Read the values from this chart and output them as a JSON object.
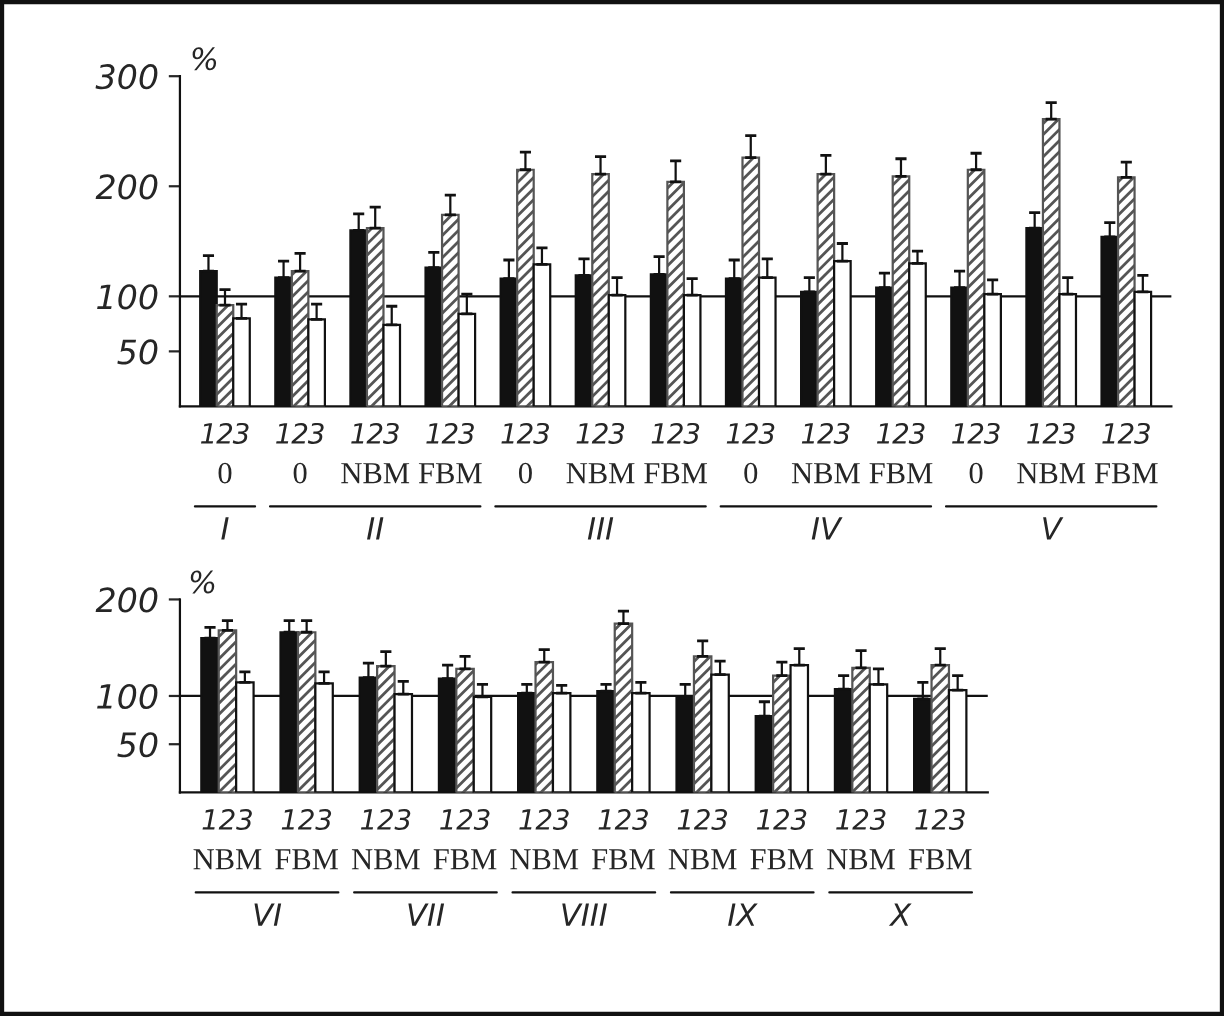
{
  "chart_data": [
    {
      "type": "bar",
      "ylabel": "%",
      "categories": [
        "0",
        "0",
        "NBM",
        "FBM",
        "0",
        "NBM",
        "FBM",
        "0",
        "NBM",
        "FBM",
        "0",
        "NBM",
        "FBM"
      ],
      "series": [
        {
          "name": "1",
          "color": "#111111",
          "values": [
            123,
            117,
            160,
            126,
            116,
            119,
            120,
            116,
            104,
            108,
            108,
            162,
            154
          ],
          "errors": [
            [
              123,
              137
            ],
            [
              117,
              132
            ],
            [
              160,
              175
            ],
            [
              126,
              140
            ],
            [
              116,
              133
            ],
            [
              119,
              134
            ],
            [
              120,
              136
            ],
            [
              116,
              133
            ],
            [
              104,
              117
            ],
            [
              108,
              121
            ],
            [
              108,
              123
            ],
            [
              162,
              176
            ],
            [
              154,
              167
            ]
          ]
        },
        {
          "name": "2",
          "color": "#555555",
          "values": [
            92,
            123,
            162,
            174,
            215,
            211,
            204,
            226,
            211,
            209,
            215,
            261,
            208
          ],
          "errors": [
            [
              92,
              106
            ],
            [
              123,
              139
            ],
            [
              162,
              181
            ],
            [
              174,
              192
            ],
            [
              215,
              231
            ],
            [
              211,
              227
            ],
            [
              204,
              223
            ],
            [
              226,
              246
            ],
            [
              211,
              228
            ],
            [
              209,
              225
            ],
            [
              215,
              230
            ],
            [
              261,
              276
            ],
            [
              208,
              222
            ]
          ]
        },
        {
          "name": "3",
          "color": "#ffffff",
          "values": [
            80,
            79,
            74,
            84,
            129,
            101,
            101,
            117,
            132,
            130,
            102,
            102,
            104
          ],
          "errors": [
            [
              80,
              93
            ],
            [
              79,
              93
            ],
            [
              74,
              91
            ],
            [
              84,
              102
            ],
            [
              129,
              144
            ],
            [
              101,
              117
            ],
            [
              101,
              116
            ],
            [
              117,
              134
            ],
            [
              132,
              148
            ],
            [
              130,
              141
            ],
            [
              102,
              115
            ],
            [
              102,
              117
            ],
            [
              104,
              119
            ]
          ]
        }
      ],
      "ylim": [
        0,
        300
      ],
      "yticks": [
        50,
        100,
        200,
        300
      ],
      "ref_lines": [
        {
          "axis": "y",
          "value": 100,
          "color": "#111111"
        }
      ],
      "annotations": [
        "I",
        "II",
        "III",
        "IV",
        "V"
      ]
    },
    {
      "type": "bar",
      "ylabel": "%",
      "categories": [
        "NBM",
        "FBM",
        "NBM",
        "FBM",
        "NBM",
        "FBM",
        "NBM",
        "FBM",
        "NBM",
        "FBM"
      ],
      "series": [
        {
          "name": "1",
          "color": "#111111",
          "values": [
            160,
            166,
            119,
            118,
            103,
            105,
            98,
            79,
            107,
            97
          ],
          "errors": [
            [
              160,
              171
            ],
            [
              166,
              178
            ],
            [
              119,
              134
            ],
            [
              118,
              132
            ],
            [
              103,
              112
            ],
            [
              105,
              112
            ],
            [
              98,
              112
            ],
            [
              79,
              94
            ],
            [
              107,
              121
            ],
            [
              97,
              114
            ]
          ]
        },
        {
          "name": "2",
          "color": "#555555",
          "values": [
            168,
            166,
            131,
            128,
            135,
            175,
            141,
            121,
            129,
            132
          ],
          "errors": [
            [
              168,
              178
            ],
            [
              166,
              178
            ],
            [
              131,
              146
            ],
            [
              128,
              141
            ],
            [
              135,
              148
            ],
            [
              175,
              188
            ],
            [
              141,
              157
            ],
            [
              121,
              135
            ],
            [
              129,
              147
            ],
            [
              132,
              149
            ]
          ]
        },
        {
          "name": "3",
          "color": "#ffffff",
          "values": [
            114,
            113,
            102,
            99,
            103,
            103,
            122,
            132,
            112,
            106
          ],
          "errors": [
            [
              114,
              125
            ],
            [
              113,
              125
            ],
            [
              102,
              115
            ],
            [
              99,
              112
            ],
            [
              103,
              111
            ],
            [
              103,
              114
            ],
            [
              122,
              136
            ],
            [
              132,
              149
            ],
            [
              112,
              128
            ],
            [
              106,
              121
            ]
          ]
        }
      ],
      "ylim": [
        0,
        200
      ],
      "yticks": [
        50,
        100,
        200
      ],
      "ref_lines": [
        {
          "axis": "y",
          "value": 100,
          "color": "#111111"
        }
      ],
      "annotations": [
        "VI",
        "VII",
        "VIII",
        "IX",
        "X"
      ]
    }
  ]
}
